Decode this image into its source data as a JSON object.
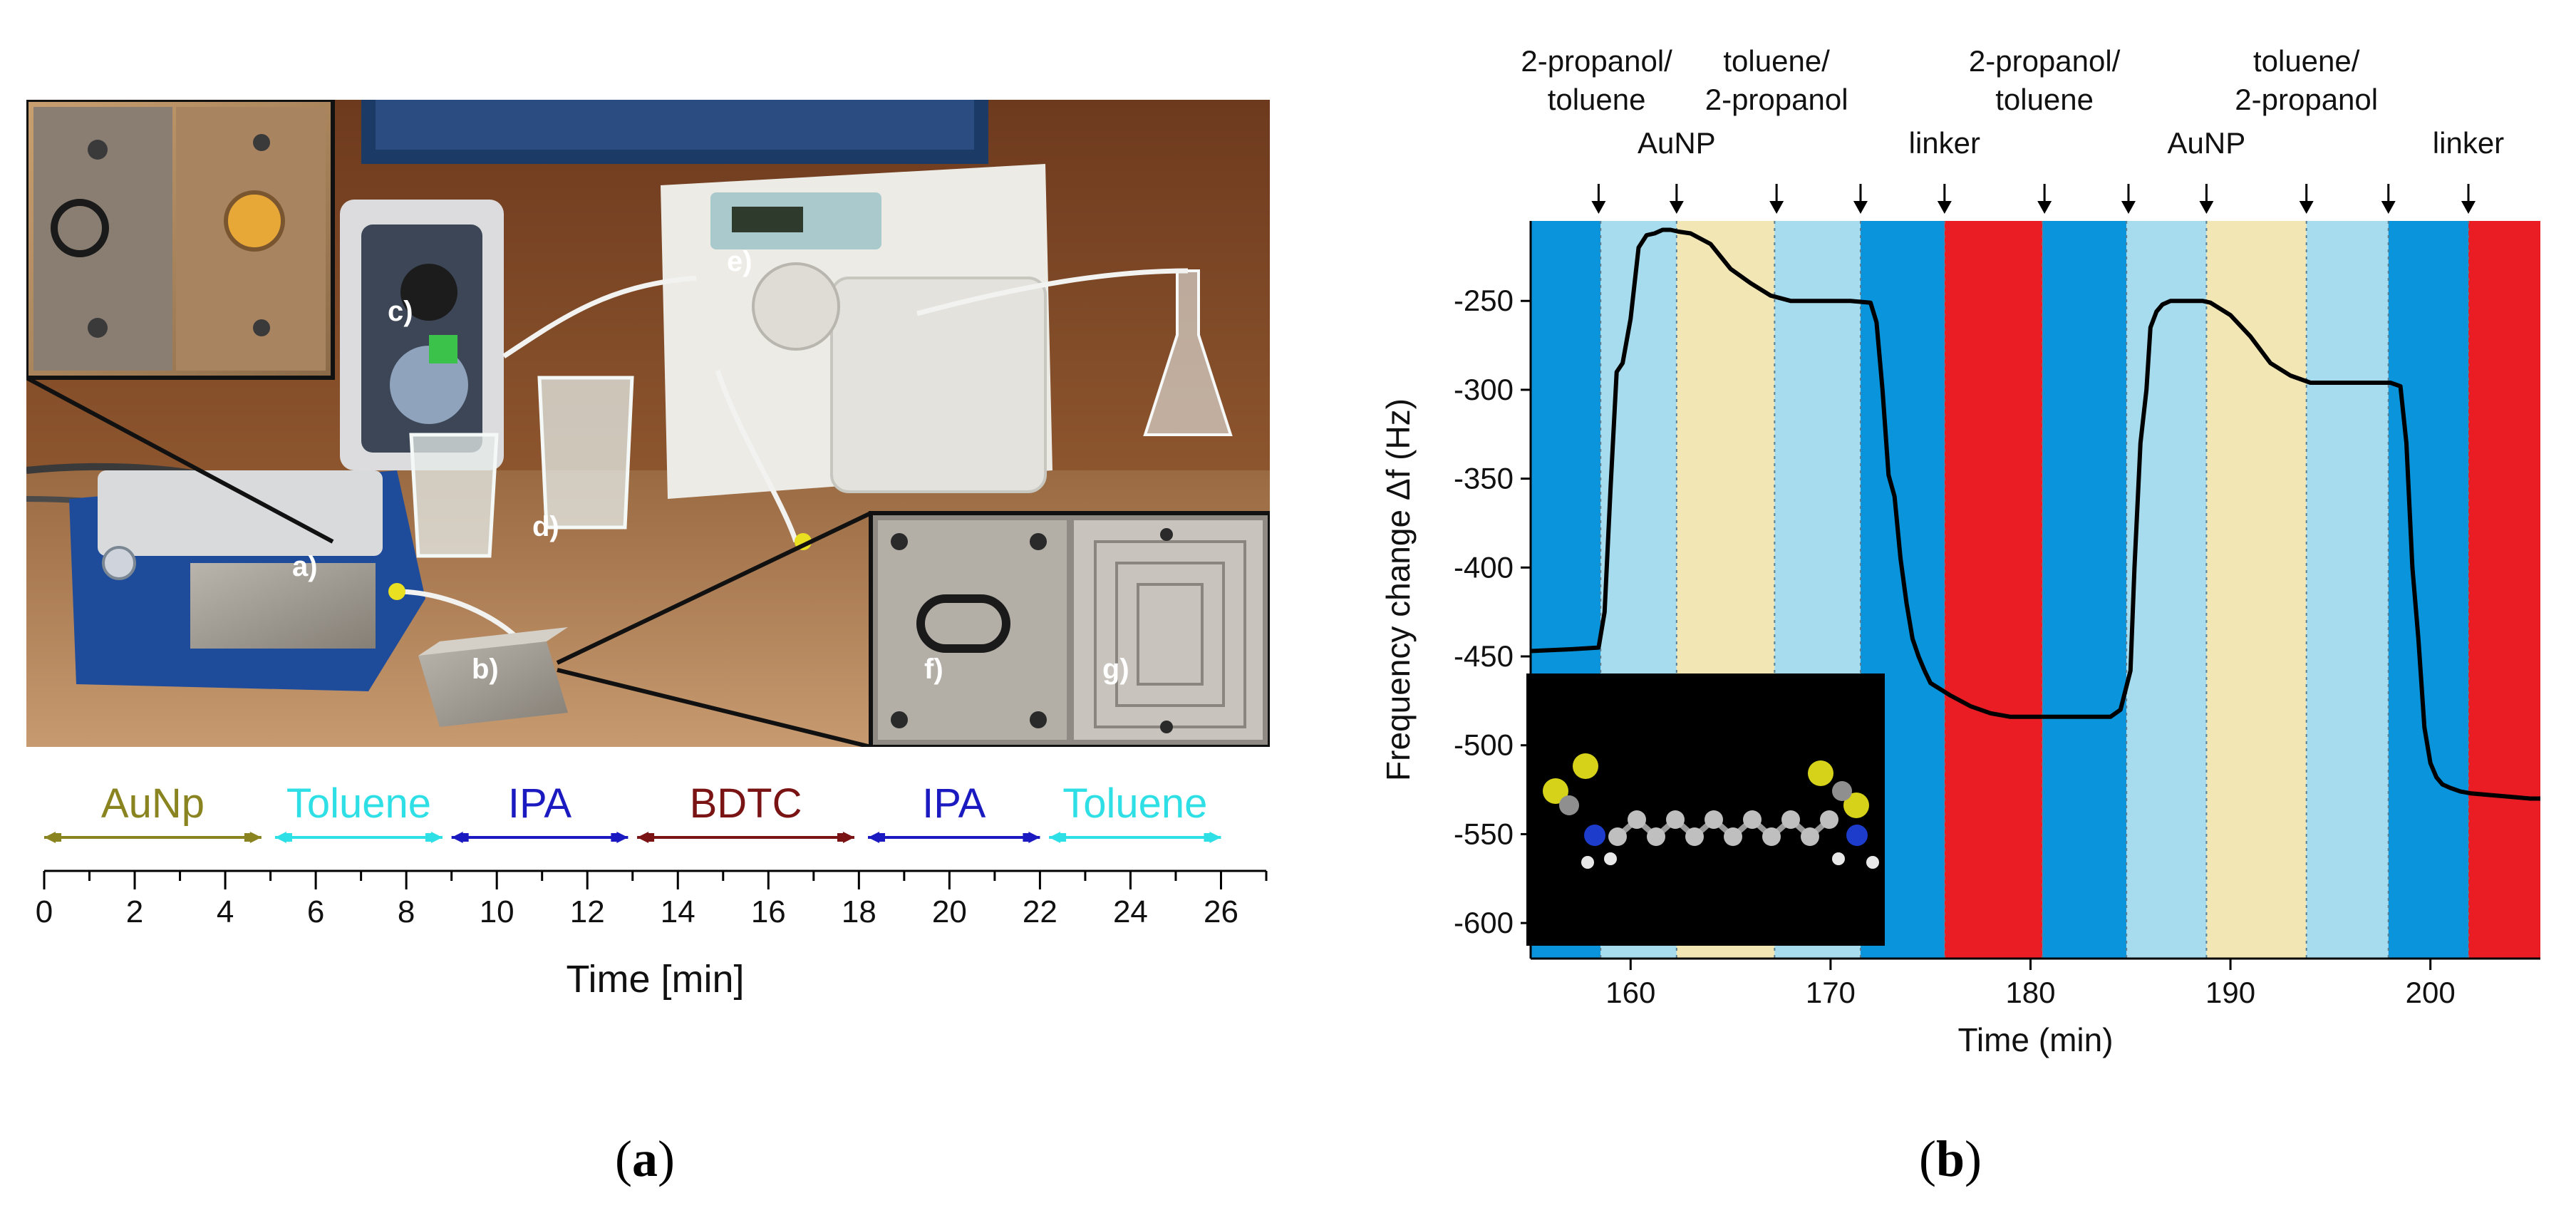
{
  "colors": {
    "ethanol_phase": "#0a94dc",
    "mixed_phase": "#a6dcee",
    "aunp_phase": "#f2e6b4",
    "linker_phase": "#ea1c24",
    "trace": "#000000",
    "aunp_seg": "#8a8420",
    "toluene_seg": "#2ee0e6",
    "ipa_seg": "#1a1ac0",
    "bdtc_seg": "#7a1414"
  },
  "panel_a": {
    "label_open": "(",
    "label_letter": "a",
    "label_close": ")",
    "photo_labels": [
      "a)",
      "b)",
      "c)",
      "d)",
      "e)",
      "f)",
      "g)"
    ],
    "timeline": {
      "segments": [
        {
          "label": "AuNp",
          "start": 0,
          "end": 4.8,
          "color_key": "aunp_seg"
        },
        {
          "label": "Toluene",
          "start": 5.1,
          "end": 8.8,
          "color_key": "toluene_seg"
        },
        {
          "label": "IPA",
          "start": 9.0,
          "end": 12.9,
          "color_key": "ipa_seg"
        },
        {
          "label": "BDTC",
          "start": 13.1,
          "end": 17.9,
          "color_key": "bdtc_seg"
        },
        {
          "label": "IPA",
          "start": 18.2,
          "end": 22.0,
          "color_key": "ipa_seg"
        },
        {
          "label": "Toluene",
          "start": 22.2,
          "end": 26.0,
          "color_key": "toluene_seg"
        }
      ],
      "axis": {
        "min": 0,
        "max": 27,
        "major_ticks": [
          0,
          2,
          4,
          6,
          8,
          10,
          12,
          14,
          16,
          18,
          20,
          22,
          24,
          26
        ],
        "minor_step": 1
      },
      "xlabel": "Time [min]"
    }
  },
  "chart_data": {
    "type": "line",
    "panel_label_open": "(",
    "panel_label_letter": "b",
    "panel_label_close": ")",
    "xlabel": "Time (min)",
    "ylabel": "Frequency change Δf (Hz)",
    "xlim": [
      155,
      205.5
    ],
    "ylim": [
      -620,
      -205
    ],
    "xticks": [
      160,
      170,
      180,
      190,
      200
    ],
    "yticks": [
      -250,
      -300,
      -350,
      -400,
      -450,
      -500,
      -550,
      -600
    ],
    "grid": false,
    "phases": [
      {
        "start": 155,
        "end": 158.5,
        "color_key": "ethanol_phase"
      },
      {
        "start": 158.5,
        "end": 162.3,
        "color_key": "mixed_phase"
      },
      {
        "start": 162.3,
        "end": 167.2,
        "color_key": "aunp_phase"
      },
      {
        "start": 167.2,
        "end": 171.5,
        "color_key": "mixed_phase"
      },
      {
        "start": 171.5,
        "end": 175.7,
        "color_key": "ethanol_phase"
      },
      {
        "start": 175.7,
        "end": 180.6,
        "color_key": "linker_phase"
      },
      {
        "start": 180.6,
        "end": 184.8,
        "color_key": "ethanol_phase"
      },
      {
        "start": 184.8,
        "end": 188.8,
        "color_key": "mixed_phase"
      },
      {
        "start": 188.8,
        "end": 193.8,
        "color_key": "aunp_phase"
      },
      {
        "start": 193.8,
        "end": 197.9,
        "color_key": "mixed_phase"
      },
      {
        "start": 197.9,
        "end": 201.9,
        "color_key": "ethanol_phase"
      },
      {
        "start": 201.9,
        "end": 205.5,
        "color_key": "linker_phase"
      }
    ],
    "annotations": [
      {
        "text": [
          "2-propanol/",
          "toluene"
        ],
        "x": 158.3,
        "row": "upper"
      },
      {
        "text": [
          "AuNP"
        ],
        "x": 162.3,
        "row": "lower"
      },
      {
        "text": [
          "toluene/",
          "2-propanol"
        ],
        "x": 167.3,
        "row": "upper"
      },
      {
        "text": [
          "linker"
        ],
        "x": 175.7,
        "row": "lower"
      },
      {
        "text": [
          "2-propanol/",
          "toluene"
        ],
        "x": 180.7,
        "row": "upper"
      },
      {
        "text": [
          "AuNP"
        ],
        "x": 188.8,
        "row": "lower"
      },
      {
        "text": [
          "toluene/",
          "2-propanol"
        ],
        "x": 193.8,
        "row": "upper"
      },
      {
        "text": [
          "linker"
        ],
        "x": 201.9,
        "row": "lower"
      }
    ],
    "arrows_at": [
      158.4,
      162.3,
      167.3,
      171.5,
      175.7,
      180.7,
      184.9,
      188.8,
      193.8,
      197.9,
      201.9
    ],
    "series": [
      {
        "x": [
          155,
          157,
          158.4,
          158.7,
          159.0,
          159.3,
          159.6,
          160.0,
          160.4,
          160.8,
          161.2,
          161.6,
          162.0,
          162.4,
          163.0,
          164.0,
          165.0,
          166.0,
          167.0,
          168.0,
          169.0,
          170.0,
          171.0,
          172.0,
          172.3,
          172.6,
          172.9,
          173.2,
          173.5,
          173.8,
          174.1,
          174.4,
          174.7,
          175.0,
          176.0,
          177.0,
          178.0,
          179.0,
          180.0,
          181.0,
          182.0,
          183.0,
          184.0,
          184.5,
          185.0,
          185.2,
          185.5,
          185.8,
          186.0,
          186.3,
          186.6,
          187.0,
          187.4,
          187.8,
          188.2,
          188.6,
          189.0,
          190.0,
          191.0,
          192.0,
          193.0,
          194.0,
          195.0,
          196.0,
          197.0,
          198.0,
          198.5,
          198.8,
          199.1,
          199.4,
          199.7,
          200.0,
          200.3,
          200.6,
          201.0,
          201.5,
          202.0,
          203.0,
          204.0,
          205.0,
          205.5
        ],
        "y": [
          -447,
          -446,
          -445,
          -425,
          -355,
          -290,
          -285,
          -260,
          -220,
          -213,
          -212,
          -210,
          -210,
          -211,
          -212,
          -218,
          -232,
          -240,
          -247,
          -250,
          -250,
          -250,
          -250,
          -251,
          -262,
          -300,
          -348,
          -360,
          -395,
          -420,
          -440,
          -450,
          -458,
          -465,
          -472,
          -478,
          -482,
          -484,
          -484,
          -484,
          -484,
          -484,
          -484,
          -480,
          -458,
          -400,
          -330,
          -300,
          -265,
          -256,
          -252,
          -250,
          -250,
          -250,
          -250,
          -250,
          -251,
          -258,
          -270,
          -285,
          -292,
          -296,
          -296,
          -296,
          -296,
          -296,
          -298,
          -330,
          -400,
          -440,
          -490,
          -510,
          -518,
          -522,
          -524,
          -526,
          -527,
          -528,
          -529,
          -530,
          -530
        ]
      }
    ]
  }
}
